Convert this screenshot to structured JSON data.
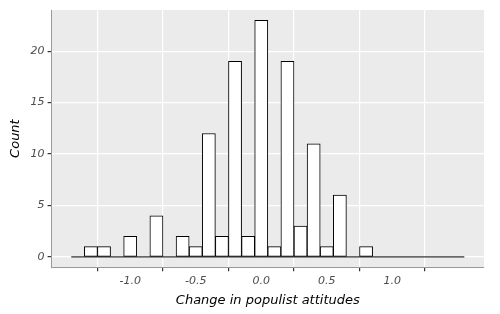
{
  "chart_data": {
    "type": "histogram",
    "x_label": "Change in populist attitudes",
    "y_label": "Count",
    "bins": [
      -1.45,
      -1.35,
      -1.25,
      -1.15,
      -1.05,
      -0.95,
      -0.85,
      -0.75,
      -0.65,
      -0.55,
      -0.45,
      -0.35,
      -0.25,
      -0.15,
      -0.05,
      0.05,
      0.15,
      0.25,
      0.35,
      0.45,
      0.55,
      0.65,
      0.75,
      0.85,
      0.95,
      1.05,
      1.15,
      1.25,
      1.35,
      1.45,
      1.55
    ],
    "values": [
      0,
      1,
      1,
      0,
      2,
      0,
      4,
      0,
      2,
      1,
      12,
      2,
      19,
      2,
      23,
      1,
      19,
      3,
      11,
      1,
      6,
      0,
      1,
      0,
      0,
      0,
      0,
      0,
      0,
      0
    ],
    "color": "#ffffff",
    "xlim": [
      -1.6,
      1.7
    ],
    "xticks": [
      {
        "value": -1,
        "label": "-1.0"
      },
      -0.5,
      {
        "value": 0,
        "label": "0.0"
      },
      0.5,
      {
        "value": 1,
        "label": "1.0"
      }
    ],
    "ylim": [
      -1,
      24
    ],
    "yticks": [
      0,
      5,
      10,
      15,
      20
    ],
    "grid": true
  }
}
